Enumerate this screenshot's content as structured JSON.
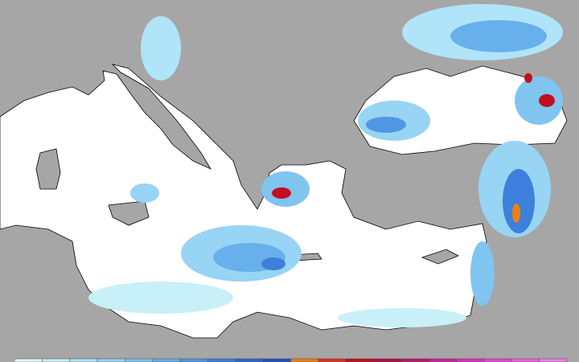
{
  "map": {
    "colorbar": {
      "colors": [
        "#e0f8f8",
        "#c8f0f8",
        "#b0e4f8",
        "#98d4f4",
        "#80c4f0",
        "#68b0ec",
        "#5098e4",
        "#3c80dc",
        "#2c68d0",
        "#2050c0",
        "#f08010",
        "#e03020",
        "#c01020",
        "#b01040",
        "#c01870",
        "#d020a0",
        "#e030c0",
        "#e848d0",
        "#f060e0",
        "#f080e8"
      ]
    }
  }
}
